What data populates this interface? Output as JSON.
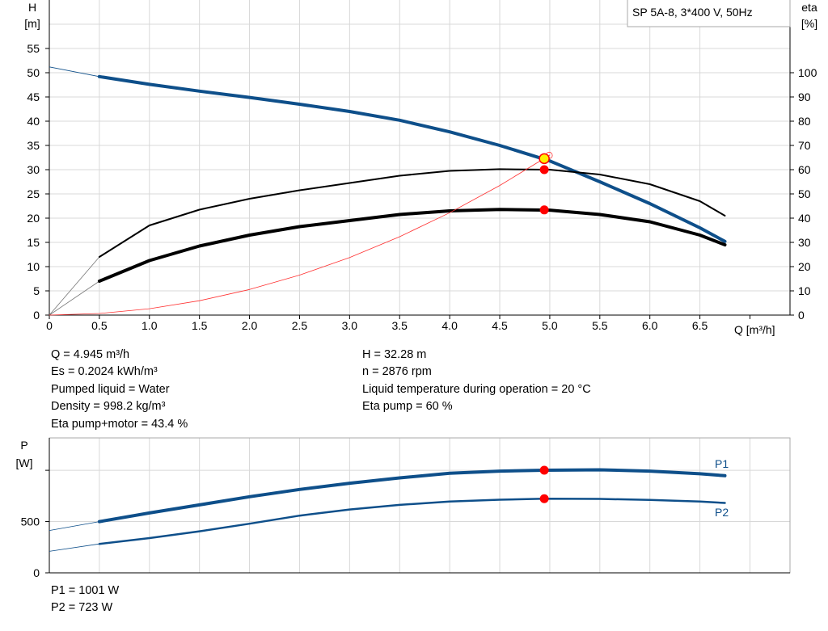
{
  "chart_data": [
    {
      "type": "line",
      "title": "SP 5A-8, 3*400 V, 50Hz",
      "xlabel": "Q [m³/h]",
      "ylabel": "H\n[m]",
      "ylabel_unit": "[m]",
      "ylabel_name": "H",
      "y2label_name": "eta",
      "y2label_unit": "[%]",
      "xlim": [
        0,
        7.4
      ],
      "ylim": [
        0,
        65
      ],
      "y2lim": [
        0,
        130
      ],
      "x_ticks": [
        "0",
        "0.5",
        "1.0",
        "1.5",
        "2.0",
        "2.5",
        "3.0",
        "3.5",
        "4.0",
        "4.5",
        "5.0",
        "5.5",
        "6.0",
        "6.5"
      ],
      "y_ticks": [
        "0",
        "5",
        "10",
        "15",
        "20",
        "25",
        "30",
        "35",
        "40",
        "45",
        "50",
        "55"
      ],
      "y2_ticks": [
        "0",
        "10",
        "20",
        "30",
        "40",
        "50",
        "60",
        "70",
        "80",
        "90",
        "100"
      ],
      "grid": true,
      "series": [
        {
          "id": "H",
          "axis": "left",
          "color": "#0e4f8a",
          "extrapolated": {
            "x": [
              0,
              0.5
            ],
            "y": [
              51.2,
              49.2
            ]
          },
          "x": [
            0.5,
            1.0,
            1.5,
            2.0,
            2.5,
            3.0,
            3.5,
            4.0,
            4.5,
            5.0,
            5.5,
            6.0,
            6.5,
            6.75
          ],
          "y": [
            49.2,
            47.6,
            46.2,
            44.9,
            43.5,
            42.0,
            40.2,
            37.8,
            35.0,
            31.8,
            27.5,
            23.0,
            18.0,
            15.2
          ]
        },
        {
          "id": "eta-pump",
          "axis": "right",
          "color": "#000000",
          "extrapolated": {
            "x": [
              0,
              0.5
            ],
            "y": [
              0,
              24
            ]
          },
          "x": [
            0.5,
            1.0,
            1.5,
            2.0,
            2.5,
            3.0,
            3.5,
            4.0,
            4.5,
            5.0,
            5.5,
            6.0,
            6.5,
            6.75
          ],
          "y": [
            24,
            37,
            43.5,
            48,
            51.5,
            54.5,
            57.5,
            59.5,
            60.2,
            60,
            58,
            54,
            47,
            41
          ]
        },
        {
          "id": "eta-pump-motor",
          "axis": "right",
          "color": "#000000",
          "extrapolated": {
            "x": [
              0,
              0.5
            ],
            "y": [
              0,
              14
            ]
          },
          "x": [
            0.5,
            1.0,
            1.5,
            2.0,
            2.5,
            3.0,
            3.5,
            4.0,
            4.5,
            5.0,
            5.5,
            6.0,
            6.5,
            6.75
          ],
          "y": [
            14,
            22.5,
            28.5,
            33,
            36.5,
            39,
            41.5,
            43,
            43.6,
            43.3,
            41.5,
            38.5,
            33,
            29
          ]
        },
        {
          "id": "system-curve",
          "axis": "left",
          "color": "#ff3030",
          "x": [
            0,
            0.5,
            1.0,
            1.5,
            2.0,
            2.5,
            3.0,
            3.5,
            4.0,
            4.5,
            5.0
          ],
          "y": [
            0,
            0.33,
            1.32,
            2.97,
            5.28,
            8.25,
            11.88,
            16.17,
            21.12,
            26.73,
            33.0
          ]
        }
      ],
      "duty_point": {
        "Q": 4.945,
        "H": 32.28,
        "eta_pump": 60,
        "eta_total": 43.4
      }
    },
    {
      "type": "line",
      "ylabel_name": "P",
      "ylabel_unit": "[W]",
      "xlim": [
        0,
        7.4
      ],
      "ylim": [
        0,
        1316
      ],
      "y_ticks": [
        "0",
        "500"
      ],
      "y_tick_values": [
        0,
        500,
        1000
      ],
      "grid": true,
      "series": [
        {
          "name": "P1",
          "color": "#0e4f8a",
          "extrapolated": {
            "x": [
              0,
              0.5
            ],
            "y": [
              413,
              500
            ]
          },
          "x": [
            0.5,
            1.0,
            1.5,
            2.0,
            2.5,
            3.0,
            3.5,
            4.0,
            4.5,
            4.945,
            5.5,
            6.0,
            6.5,
            6.75
          ],
          "y": [
            500,
            584,
            663,
            742,
            813,
            874,
            926,
            971,
            992,
            1001,
            1005,
            992,
            966,
            947
          ]
        },
        {
          "name": "P2",
          "color": "#0e4f8a",
          "extrapolated": {
            "x": [
              0,
              0.5
            ],
            "y": [
              210,
              282
            ]
          },
          "x": [
            0.5,
            1.0,
            1.5,
            2.0,
            2.5,
            3.0,
            3.5,
            4.0,
            4.5,
            4.945,
            5.5,
            6.0,
            6.5,
            6.75
          ],
          "y": [
            282,
            339,
            405,
            479,
            558,
            618,
            663,
            695,
            713,
            723,
            721,
            711,
            695,
            682
          ]
        }
      ],
      "duty_point": {
        "Q": 4.945,
        "P1": 1001,
        "P2": 723
      }
    }
  ],
  "info": {
    "left": [
      "Q = 4.945 m³/h",
      "Es = 0.2024 kWh/m³",
      "Pumped liquid = Water",
      "Density = 998.2 kg/m³",
      "Eta pump+motor = 43.4 %"
    ],
    "right": [
      "H = 32.28 m",
      "n = 2876 rpm",
      "Liquid temperature during operation = 20 °C",
      "Eta pump = 60 %"
    ],
    "power": [
      "P1 = 1001 W",
      "P2 = 723 W"
    ]
  }
}
